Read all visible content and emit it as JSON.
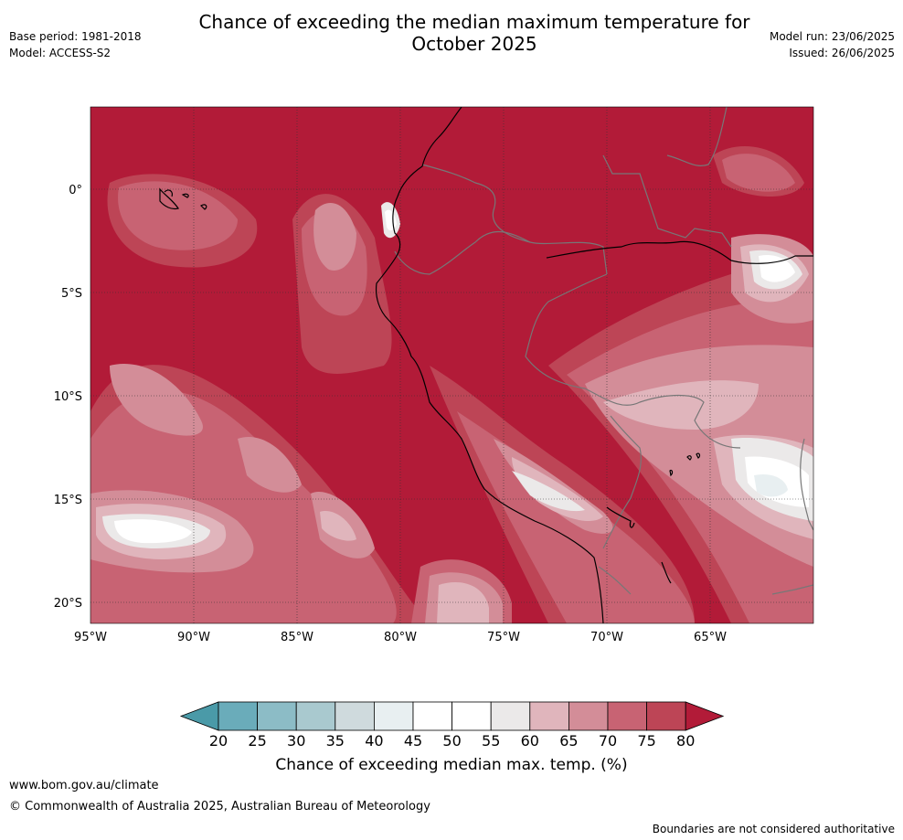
{
  "header": {
    "title_line1": "Chance of exceeding the median maximum temperature for",
    "title_line2": "October 2025",
    "base_period": "Base period: 1981-2018",
    "model": "Model: ACCESS-S2",
    "model_run": "Model run: 23/06/2025",
    "issued": "Issued: 26/06/2025"
  },
  "map": {
    "lon_labels": [
      "95°W",
      "90°W",
      "85°W",
      "80°W",
      "75°W",
      "70°W",
      "65°W"
    ],
    "lat_labels": [
      "0°",
      "5°S",
      "10°S",
      "15°S",
      "20°S"
    ],
    "background_color": "#b21b38",
    "coast_color": "#000000",
    "border_color": "#777777"
  },
  "colorbar": {
    "ticks": [
      "20",
      "25",
      "30",
      "35",
      "40",
      "45",
      "50",
      "55",
      "60",
      "65",
      "70",
      "75",
      "80"
    ],
    "colors": [
      "#4a9aa8",
      "#6aacba",
      "#8cbcc6",
      "#a9c9cf",
      "#cfdadd",
      "#e8eff1",
      "#ffffff",
      "#ffffff",
      "#ebe9e9",
      "#e0b5bc",
      "#d38d98",
      "#c86373",
      "#bd4556",
      "#b21b38"
    ],
    "label": "Chance of exceeding median max. temp. (%)"
  },
  "footer": {
    "url": "www.bom.gov.au/climate",
    "copyright": "© Commonwealth of Australia 2025, Australian Bureau of Meteorology",
    "note": "Boundaries are not considered authoritative"
  }
}
